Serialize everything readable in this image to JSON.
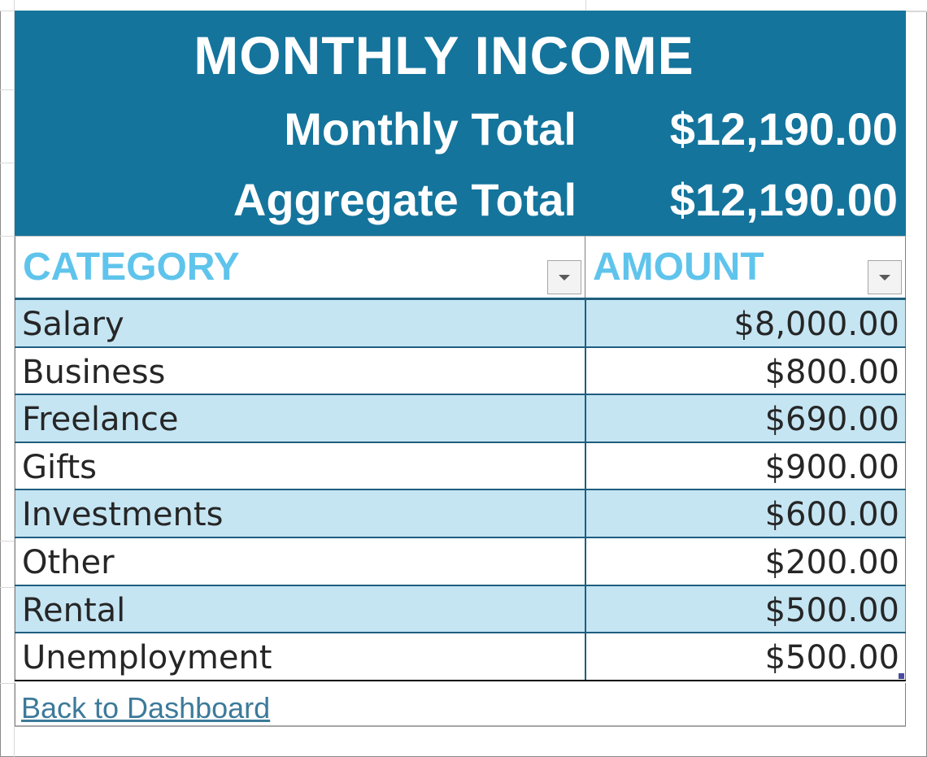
{
  "banner": {
    "title": "MONTHLY INCOME",
    "monthly_total_label": "Monthly Total",
    "monthly_total_value": "$12,190.00",
    "aggregate_total_label": "Aggregate Total",
    "aggregate_total_value": "$12,190.00",
    "background_color": "#14749c"
  },
  "table": {
    "columns": [
      "CATEGORY",
      "AMOUNT"
    ],
    "header_color": "#5fc4ec",
    "band_color": "#c5e5f3",
    "rows": [
      {
        "category": "Salary",
        "amount": "$8,000.00"
      },
      {
        "category": "Business",
        "amount": "$800.00"
      },
      {
        "category": "Freelance",
        "amount": "$690.00"
      },
      {
        "category": "Gifts",
        "amount": "$900.00"
      },
      {
        "category": "Investments",
        "amount": "$600.00"
      },
      {
        "category": "Other",
        "amount": "$200.00"
      },
      {
        "category": "Rental",
        "amount": "$500.00"
      },
      {
        "category": "Unemployment",
        "amount": "$500.00"
      }
    ]
  },
  "footer": {
    "back_link": "Back to Dashboard"
  }
}
